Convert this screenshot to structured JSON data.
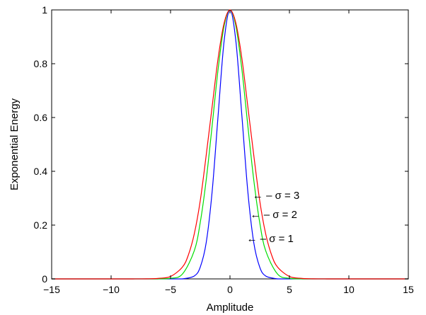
{
  "chart_data": {
    "type": "line",
    "title": "",
    "xlabel": "Amplitude",
    "ylabel": "Exponential Energy",
    "xlim": [
      -15,
      15
    ],
    "ylim": [
      0,
      1
    ],
    "grid": false,
    "x_ticks": [
      -15,
      -10,
      -5,
      0,
      5,
      10,
      15
    ],
    "x_tick_labels": [
      "−15",
      "−10",
      "−5",
      "0",
      "5",
      "10",
      "15"
    ],
    "y_ticks": [
      0,
      0.2,
      0.4,
      0.6,
      0.8,
      1
    ],
    "y_tick_labels": [
      "0",
      "0.2",
      "0.4",
      "0.6",
      "0.8",
      "1"
    ],
    "series": [
      {
        "color": "#0000ff",
        "x": [
          -15,
          -5,
          -4,
          -3,
          -2.5,
          -2,
          -1.5,
          -1,
          -0.5,
          0,
          0.5,
          1,
          1.5,
          2,
          2.5,
          3,
          4,
          5,
          15
        ],
        "y": [
          0,
          0,
          0.0003,
          0.011,
          0.044,
          0.135,
          0.325,
          0.607,
          0.882,
          1,
          0.882,
          0.607,
          0.325,
          0.135,
          0.044,
          0.011,
          0.0003,
          0,
          0
        ]
      },
      {
        "color": "#00dd00",
        "x": [
          -15,
          -7,
          -6,
          -5,
          -4,
          -3,
          -2.5,
          -2,
          -1.5,
          -1,
          -0.5,
          0,
          0.5,
          1,
          1.5,
          2,
          2.5,
          3,
          4,
          5,
          6,
          7,
          15
        ],
        "y": [
          0,
          0,
          0.0001,
          0.002,
          0.018,
          0.105,
          0.21,
          0.368,
          0.57,
          0.779,
          0.939,
          1,
          0.939,
          0.779,
          0.57,
          0.368,
          0.21,
          0.105,
          0.018,
          0.002,
          0.0001,
          0,
          0
        ]
      },
      {
        "color": "#ff0000",
        "x": [
          -15,
          -9,
          -8,
          -7,
          -6,
          -5,
          -4,
          -3.5,
          -3,
          -2.5,
          -2,
          -1.5,
          -1,
          -0.5,
          0,
          0.5,
          1,
          1.5,
          2,
          2.5,
          3,
          3.5,
          4,
          5,
          6,
          7,
          8,
          9,
          15
        ],
        "y": [
          0,
          0,
          0.0001,
          0.0003,
          0.002,
          0.009,
          0.044,
          0.089,
          0.168,
          0.291,
          0.46,
          0.641,
          0.82,
          0.95,
          1,
          0.95,
          0.82,
          0.641,
          0.46,
          0.291,
          0.168,
          0.089,
          0.044,
          0.009,
          0.002,
          0.0003,
          0.0001,
          0,
          0
        ]
      }
    ],
    "annotations": [
      {
        "text": "← – σ = 3",
        "arrow_to": [
          1.9,
          0.31
        ]
      },
      {
        "text": "← – σ = 2",
        "arrow_to": [
          1.7,
          0.24
        ]
      },
      {
        "text": "← – σ = 1",
        "arrow_to": [
          1.4,
          0.15
        ]
      }
    ]
  }
}
